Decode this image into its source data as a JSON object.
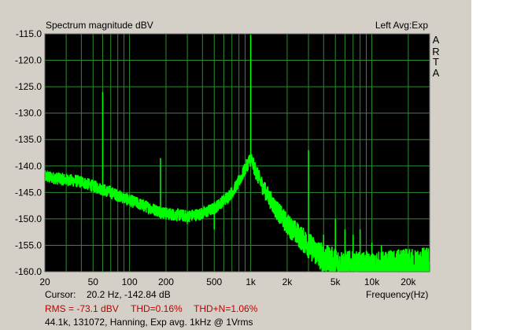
{
  "header": {
    "title": "Spectrum magnitude dBV",
    "channel_info": "Left  Avg:Exp"
  },
  "brand_letters": [
    "A",
    "R",
    "T",
    "A"
  ],
  "footer": {
    "cursor_label": "Cursor:",
    "cursor_value": "20.2 Hz, -142.84 dB",
    "rms": "RMS = -73.1 dBV",
    "thd": "THD=0.16%",
    "thdn": "THD+N=1.06%",
    "settings": "44.1k, 131072, Hanning, Exp avg. 1kHz @ 1Vrms"
  },
  "colors": {
    "plot_bg": "#000000",
    "grid": "#2e8b2e",
    "trace": "#00ff00",
    "panel": "#d4d0c8",
    "stats": "#c00000"
  },
  "chart_data": {
    "type": "line",
    "title": "Spectrum magnitude dBV",
    "xlabel": "Frequency(Hz)",
    "ylabel": "",
    "x_scale": "log",
    "xlim": [
      20,
      30000
    ],
    "ylim": [
      -160,
      -115
    ],
    "x_ticks": [
      {
        "value": 20,
        "label": "20"
      },
      {
        "value": 50,
        "label": "50"
      },
      {
        "value": 100,
        "label": "100"
      },
      {
        "value": 200,
        "label": "200"
      },
      {
        "value": 500,
        "label": "500"
      },
      {
        "value": 1000,
        "label": "1k"
      },
      {
        "value": 2000,
        "label": "2k"
      },
      {
        "value": 5000,
        "label": "5k"
      },
      {
        "value": 10000,
        "label": "10k"
      },
      {
        "value": 20000,
        "label": "20k"
      }
    ],
    "y_ticks": [
      {
        "value": -115,
        "label": "-115.0"
      },
      {
        "value": -120,
        "label": "-120.0"
      },
      {
        "value": -125,
        "label": "-125.0"
      },
      {
        "value": -130,
        "label": "-130.0"
      },
      {
        "value": -135,
        "label": "-135.0"
      },
      {
        "value": -140,
        "label": "-140.0"
      },
      {
        "value": -145,
        "label": "-145.0"
      },
      {
        "value": -150,
        "label": "-150.0"
      },
      {
        "value": -155,
        "label": "-155.0"
      },
      {
        "value": -160,
        "label": "-160.0"
      }
    ],
    "grid": true,
    "series": [
      {
        "type": "noise_floor",
        "points": [
          [
            20,
            -142
          ],
          [
            40,
            -143
          ],
          [
            70,
            -145
          ],
          [
            100,
            -146.5
          ],
          [
            150,
            -148
          ],
          [
            200,
            -149
          ],
          [
            300,
            -149.5
          ],
          [
            400,
            -149
          ],
          [
            500,
            -148
          ],
          [
            600,
            -146.5
          ],
          [
            700,
            -145
          ],
          [
            800,
            -143
          ],
          [
            900,
            -140.5
          ],
          [
            1000,
            -138.5
          ],
          [
            1100,
            -141
          ],
          [
            1300,
            -144.5
          ],
          [
            1600,
            -148
          ],
          [
            2000,
            -151
          ],
          [
            3000,
            -155
          ],
          [
            4000,
            -157.5
          ],
          [
            5000,
            -158.5
          ],
          [
            7000,
            -159.5
          ],
          [
            10000,
            -160
          ],
          [
            30000,
            -160
          ]
        ]
      },
      {
        "type": "spurs",
        "points": [
          [
            60,
            -126
          ],
          [
            180,
            -138.5
          ],
          [
            300,
            -151
          ],
          [
            500,
            -152
          ],
          [
            1000,
            -115.2
          ],
          [
            2000,
            -151
          ],
          [
            3000,
            -137
          ],
          [
            4000,
            -153
          ],
          [
            5000,
            -150
          ],
          [
            6000,
            -152
          ],
          [
            7000,
            -153
          ],
          [
            8000,
            -152
          ],
          [
            9000,
            -156
          ],
          [
            10000,
            -154.5
          ],
          [
            11000,
            -156.5
          ],
          [
            12000,
            -155
          ],
          [
            13000,
            -157
          ],
          [
            14000,
            -156
          ],
          [
            15000,
            -157.5
          ]
        ]
      }
    ]
  }
}
